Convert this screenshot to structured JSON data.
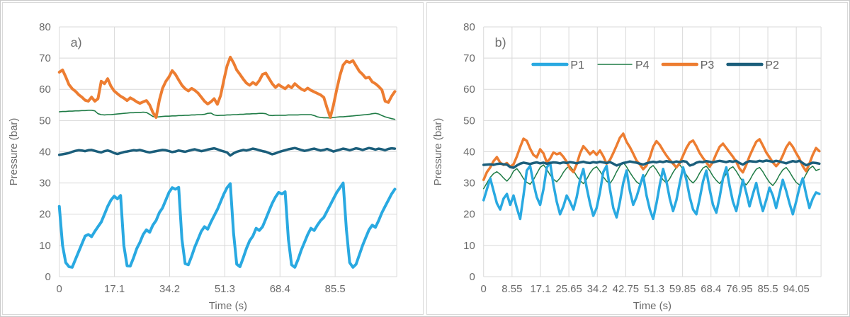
{
  "figure": {
    "background": "#ffffff",
    "border_color": "#c9c9c9",
    "grid_color": "#d9d9d9",
    "tick_color": "#6b6b6b",
    "label_color": "#5f5f5f"
  },
  "chart_data": [
    {
      "type": "line",
      "panel_label": "a)",
      "xlabel": "Time (s)",
      "ylabel": "Pressure (bar)",
      "ylim": [
        0,
        80
      ],
      "yticks": [
        0,
        10,
        20,
        30,
        40,
        50,
        60,
        70,
        80
      ],
      "x_axis_max": 104.6,
      "grid": true,
      "legend": null,
      "xticks": {
        "values": [
          0,
          17.1,
          34.2,
          51.3,
          68.4,
          85.5
        ],
        "labels": [
          "0",
          "17.1",
          "34.2",
          "51.3",
          "68.4",
          "85.5"
        ]
      },
      "sample_dt": 1,
      "draw_order": [
        "P4",
        "P1",
        "P3",
        "P2"
      ],
      "series": [
        {
          "name": "P1",
          "color": "#29a9e1",
          "width": 4,
          "values": [
            22.5,
            10,
            4.5,
            3.2,
            3,
            5.5,
            8,
            10.5,
            13,
            13.5,
            12.8,
            14.5,
            16,
            17.5,
            20,
            22.5,
            24.5,
            25.8,
            24.9,
            26,
            10,
            3.5,
            3.4,
            6,
            9,
            11,
            13.5,
            15,
            14.2,
            16.5,
            18,
            20.5,
            22,
            24.5,
            27,
            28.5,
            28,
            28.6,
            12,
            4.2,
            3.8,
            6.5,
            9.5,
            12,
            14.5,
            16,
            15.2,
            17.5,
            19.5,
            21.5,
            24,
            26.5,
            28.5,
            29.8,
            14,
            4,
            3.2,
            6,
            9,
            11.5,
            13,
            15.5,
            14.8,
            16,
            18.5,
            21,
            23.5,
            25.5,
            27,
            26.5,
            27.2,
            12,
            3.8,
            3,
            5.5,
            8.5,
            11,
            13.5,
            15.5,
            14.8,
            16.5,
            18,
            19,
            21,
            23,
            25,
            27,
            28.5,
            30,
            15,
            4.5,
            3,
            4,
            7,
            10,
            12.5,
            15,
            16.5,
            15.8,
            18,
            20.5,
            22.5,
            24.5,
            26.5,
            28
          ]
        },
        {
          "name": "P2",
          "color": "#1b5e7b",
          "width": 3.5,
          "values": [
            39,
            39.2,
            39.4,
            39.6,
            40,
            40.3,
            40.5,
            40.4,
            40.2,
            40.5,
            40.6,
            40.3,
            40,
            39.8,
            40.2,
            40.4,
            40.1,
            39.6,
            39.3,
            39.6,
            39.9,
            40.1,
            40.3,
            40.5,
            40.4,
            40.6,
            40.3,
            40,
            39.8,
            40,
            40.2,
            40.4,
            40.6,
            40.5,
            40.2,
            39.9,
            40.1,
            40.4,
            40.2,
            40,
            40.3,
            40.6,
            40.8,
            40.5,
            40.2,
            40.4,
            40.7,
            40.9,
            41.1,
            40.8,
            40.4,
            40.1,
            39.8,
            38.8,
            39.5,
            40,
            40.3,
            40.6,
            40.4,
            40.7,
            41,
            40.8,
            40.5,
            40.2,
            40,
            39.6,
            39.2,
            39.5,
            39.9,
            40.2,
            40.5,
            40.8,
            41,
            41.2,
            40.9,
            40.6,
            40.3,
            40.5,
            40.8,
            41,
            40.7,
            40.4,
            40.6,
            40.9,
            40.5,
            40.1,
            40.4,
            40.7,
            41,
            40.8,
            40.5,
            40.8,
            41.1,
            40.9,
            40.6,
            40.9,
            41.2,
            41,
            40.7,
            41,
            40.8,
            40.5,
            40.9,
            41.1,
            41
          ]
        },
        {
          "name": "P3",
          "color": "#ed7d31",
          "width": 4,
          "values": [
            65.5,
            66.2,
            64,
            61.5,
            60.2,
            59.4,
            58.3,
            57.5,
            56.5,
            56.2,
            57.5,
            56.2,
            57,
            62.6,
            61.8,
            63.4,
            61,
            59.5,
            58.6,
            57.8,
            57.2,
            56.4,
            57.3,
            56.7,
            56,
            55.5,
            56,
            56.4,
            55,
            52.6,
            51,
            56.5,
            60.3,
            62.5,
            64,
            66,
            64.8,
            63,
            61.3,
            60.2,
            59.5,
            60.3,
            59.7,
            58.8,
            57.5,
            56.2,
            55.3,
            56,
            57,
            55.2,
            58,
            63,
            67.5,
            70.3,
            68.5,
            66.2,
            64.8,
            63.3,
            62,
            61.3,
            62.2,
            61.5,
            62.8,
            64.8,
            65.2,
            63.5,
            61.8,
            60.6,
            61.5,
            60.8,
            60.2,
            61.2,
            60.5,
            61.8,
            60.9,
            60.1,
            59.6,
            60.4,
            59.7,
            59.2,
            58.7,
            58.2,
            57.4,
            54,
            51,
            55,
            60,
            64.5,
            67.8,
            69,
            68.6,
            69.2,
            67.5,
            65.8,
            64.8,
            63.6,
            63.9,
            62.4,
            61.8,
            60.9,
            59.8,
            56.2,
            55.8,
            57.8,
            59.3
          ]
        },
        {
          "name": "P4",
          "color": "#1e7b45",
          "width": 1.6,
          "values": [
            52.8,
            52.9,
            52.9,
            53,
            53,
            53.1,
            53.1,
            53.2,
            53.2,
            53.3,
            53.3,
            53.1,
            52.2,
            51.9,
            51.8,
            51.9,
            51.9,
            52,
            52.1,
            52.2,
            52.3,
            52.4,
            52.5,
            52.5,
            52.6,
            52.6,
            52.7,
            52.6,
            52,
            51.3,
            51.1,
            51.2,
            51.3,
            51.4,
            51.4,
            51.5,
            51.5,
            51.6,
            51.6,
            51.7,
            51.7,
            51.8,
            51.8,
            51.9,
            51.9,
            52,
            52.3,
            52.4,
            51.8,
            51.6,
            51.7,
            51.7,
            51.8,
            51.8,
            51.9,
            51.9,
            52,
            52,
            52.1,
            52.1,
            52.2,
            52.2,
            52.3,
            52.3,
            52.2,
            51.7,
            51.6,
            51.7,
            51.7,
            51.7,
            51.7,
            51.8,
            51.8,
            51.8,
            51.8,
            51.9,
            51.9,
            51.9,
            51.9,
            51.6,
            51.2,
            51,
            50.9,
            50.9,
            50.8,
            51,
            51.1,
            51.2,
            51.2,
            51.3,
            51.4,
            51.5,
            51.6,
            51.7,
            51.8,
            51.9,
            52,
            52.2,
            52.3,
            52.1,
            51.6,
            51.2,
            50.9,
            50.6,
            50.4
          ]
        }
      ]
    },
    {
      "type": "line",
      "panel_label": "b)",
      "xlabel": "Time (s)",
      "ylabel": "Pressure (bar)",
      "ylim": [
        0,
        80
      ],
      "yticks": [
        0,
        10,
        20,
        30,
        40,
        50,
        60,
        70,
        80
      ],
      "x_axis_max": 101.5,
      "grid": true,
      "legend": {
        "entries": [
          "P1",
          "P4",
          "P3",
          "P2"
        ],
        "position": "top"
      },
      "xticks": {
        "values": [
          0,
          8.55,
          17.1,
          25.65,
          34.2,
          42.75,
          51.3,
          59.85,
          68.4,
          76.95,
          85.5,
          94.05
        ],
        "labels": [
          "0",
          "8.55",
          "17.1",
          "25.65",
          "34.2",
          "42.75",
          "51.3",
          "59.85",
          "68.4",
          "76.95",
          "85.5",
          "94.05"
        ]
      },
      "sample_dt": 1,
      "draw_order": [
        "P4",
        "P1",
        "P3",
        "P2"
      ],
      "series": [
        {
          "name": "P1",
          "color": "#29a9e1",
          "width": 3.5,
          "values": [
            24.5,
            28,
            31.5,
            27.5,
            23.5,
            21.5,
            25,
            26.5,
            23,
            26,
            22,
            18.5,
            26,
            34,
            35.5,
            30,
            25.5,
            23,
            28,
            35,
            36.5,
            29.5,
            24,
            20,
            22.5,
            26,
            24,
            21.5,
            25.5,
            31,
            34.5,
            28.5,
            23.5,
            19.5,
            22,
            27,
            33.5,
            35.5,
            28,
            22,
            19,
            24,
            30,
            34,
            27.5,
            23,
            25.5,
            29,
            32.5,
            26,
            21.5,
            18.5,
            23.5,
            29.5,
            34.5,
            30.5,
            25,
            21,
            24.5,
            30,
            35,
            31,
            25.5,
            21.5,
            20,
            25,
            30.5,
            34,
            28,
            23,
            20.5,
            25.5,
            31.5,
            35,
            29,
            24,
            21,
            26,
            31,
            27,
            22.5,
            26.5,
            30,
            25,
            21,
            24.5,
            28.5,
            26,
            22,
            26.5,
            31,
            27.5,
            23.5,
            20,
            24,
            28.5,
            31.5,
            26.5,
            22,
            25,
            27,
            26.5
          ]
        },
        {
          "name": "P2",
          "color": "#1b5e7b",
          "width": 3.5,
          "values": [
            35.8,
            35.9,
            36,
            35.8,
            36.1,
            36.2,
            36,
            35.9,
            35.1,
            34.9,
            35.6,
            36.2,
            36.5,
            36.3,
            36.1,
            36.4,
            36.6,
            36.3,
            36.5,
            36.2,
            36.4,
            36.6,
            36.5,
            36.3,
            36.6,
            36.4,
            36.7,
            36.5,
            36.3,
            36.6,
            36.8,
            36.5,
            36.4,
            36.7,
            36.5,
            36.8,
            36.6,
            36.4,
            36.7,
            36.2,
            35.6,
            36,
            36.4,
            36.6,
            36.9,
            36.7,
            36.5,
            36.2,
            35.9,
            36.3,
            36.6,
            36.8,
            36.6,
            36.9,
            36.7,
            37,
            36.8,
            36.6,
            36.9,
            36.7,
            37,
            36.8,
            35.6,
            35.9,
            36.5,
            36.8,
            36.7,
            37,
            36.8,
            36.6,
            36.9,
            37.1,
            36.9,
            36.7,
            37,
            36.8,
            37.1,
            36.4,
            35.9,
            36.6,
            37,
            36.9,
            36.8,
            37.1,
            36.9,
            37.2,
            37,
            36.8,
            37.1,
            36.9,
            36.6,
            36.3,
            36.7,
            37,
            36.8,
            37.1,
            36.4,
            35.7,
            36.1,
            36.5,
            36.4,
            36.2
          ]
        },
        {
          "name": "P3",
          "color": "#ed7d31",
          "width": 3.5,
          "values": [
            31,
            33.5,
            35,
            37,
            38.3,
            36.5,
            35.8,
            36.4,
            35.2,
            36,
            38.5,
            41.5,
            44.2,
            43.5,
            41,
            39,
            38.2,
            40.8,
            39.5,
            36.6,
            37.8,
            39.8,
            39.2,
            39.6,
            38.4,
            36.8,
            34.6,
            33.5,
            36,
            39.5,
            41.8,
            40.6,
            39.2,
            40.2,
            39,
            40.4,
            38.6,
            36.2,
            37.4,
            39.6,
            42,
            44.5,
            45.8,
            43.2,
            41.5,
            39.4,
            37.2,
            36,
            34.4,
            35.6,
            38.2,
            41.6,
            43.4,
            42.2,
            40.4,
            38.8,
            37.4,
            36.2,
            35,
            36.4,
            38.8,
            41.2,
            43,
            43.6,
            41.8,
            39.6,
            38,
            36.6,
            35.2,
            36.8,
            39.4,
            41.6,
            42.6,
            41.2,
            39.8,
            38.4,
            36.8,
            34.6,
            33.4,
            35.8,
            38.6,
            41,
            43.2,
            44,
            42,
            39.8,
            38.2,
            36.6,
            35.4,
            36.6,
            38.8,
            41.4,
            43,
            41.6,
            39.6,
            37.8,
            35.4,
            33.8,
            36.2,
            39,
            41.2,
            40.2
          ]
        },
        {
          "name": "P4",
          "color": "#1e7b45",
          "width": 1.5,
          "values": [
            28.2,
            30,
            31.8,
            33,
            33.6,
            32.8,
            31.6,
            30.6,
            31.8,
            33.8,
            34.6,
            33.2,
            31.4,
            30.2,
            29.6,
            31,
            33,
            35,
            35.8,
            34.4,
            32.6,
            31.2,
            30.4,
            31.6,
            33.4,
            34.8,
            35.4,
            34,
            32.2,
            30.8,
            29.8,
            31.2,
            33.2,
            34.6,
            35.2,
            33.8,
            32,
            30.6,
            29.8,
            31.4,
            33.6,
            35.4,
            36.6,
            35.2,
            33.4,
            31.8,
            30.4,
            29.6,
            31,
            33,
            34.8,
            35.6,
            34.2,
            32.4,
            31,
            30,
            31.4,
            33.4,
            35,
            35.8,
            34.4,
            32.6,
            31,
            30,
            31.2,
            33.2,
            34.8,
            35.4,
            34,
            32.2,
            30.8,
            29.8,
            31.2,
            33,
            34.6,
            35.2,
            33.8,
            32,
            30.4,
            29.4,
            30.8,
            32.8,
            34.4,
            35,
            33.6,
            31.8,
            30.2,
            29.2,
            30.6,
            32.6,
            34.2,
            35,
            33.6,
            31.8,
            30.2,
            29.4,
            30.8,
            32.8,
            34.6,
            35.4,
            34,
            34.4
          ]
        }
      ]
    }
  ]
}
